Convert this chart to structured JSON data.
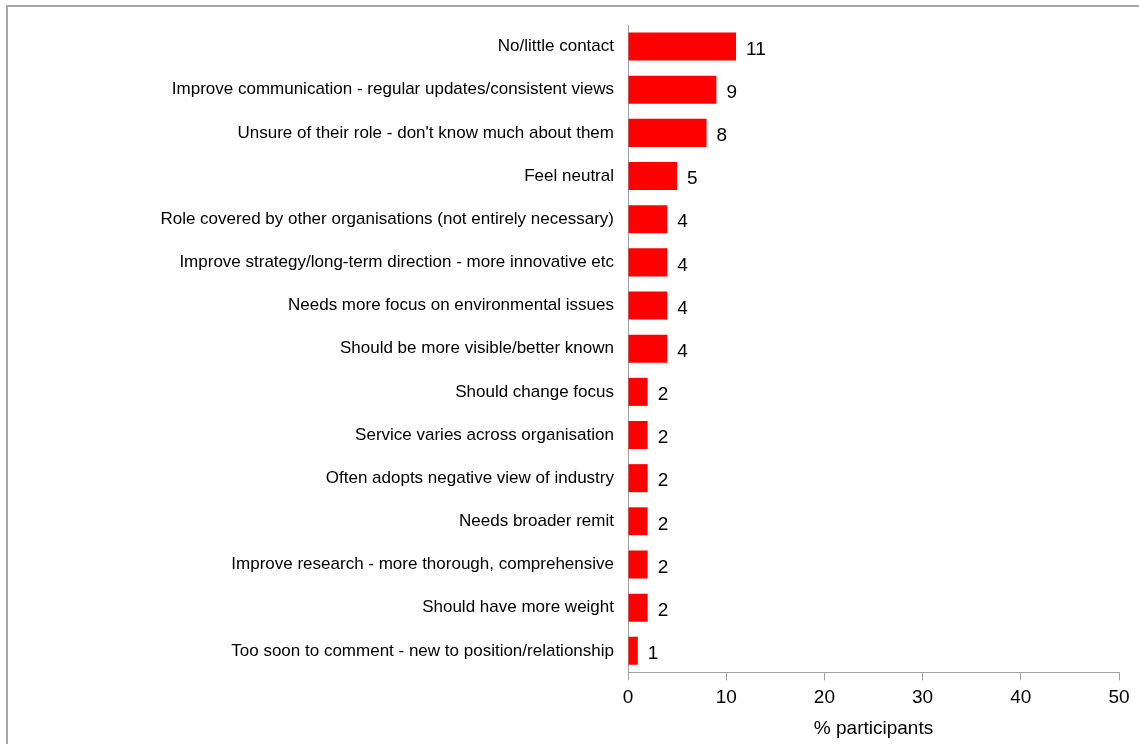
{
  "chart_data": {
    "type": "bar",
    "orientation": "horizontal",
    "categories": [
      "No/little contact",
      "Improve communication - regular updates/consistent views",
      "Unsure of their role - don't know much about them",
      "Feel neutral",
      "Role covered by other organisations (not entirely necessary)",
      "Improve strategy/long-term direction - more innovative etc",
      "Needs more focus on environmental issues",
      "Should be more visible/better known",
      "Should change focus",
      "Service varies across organisation",
      "Often adopts negative view of industry",
      "Needs broader remit",
      "Improve research - more thorough, comprehensive",
      "Should have more weight",
      "Too soon to comment - new to position/relationship"
    ],
    "values": [
      11,
      9,
      8,
      5,
      4,
      4,
      4,
      4,
      2,
      2,
      2,
      2,
      2,
      2,
      1
    ],
    "color": "#ff0000",
    "xlabel": "% participants",
    "xlim": [
      0,
      50
    ],
    "xticks": [
      0,
      10,
      20,
      30,
      40,
      50
    ],
    "grid": false,
    "legend": false,
    "data_labels": true
  }
}
